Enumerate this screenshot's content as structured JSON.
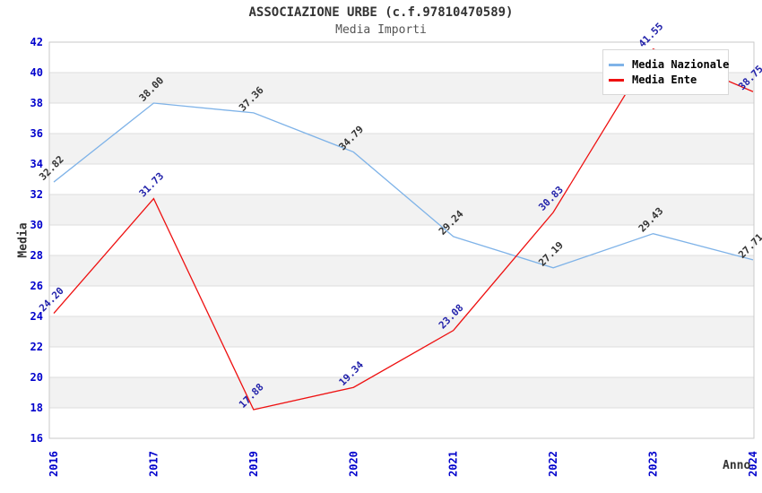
{
  "chart_data": {
    "type": "line",
    "title": "ASSOCIAZIONE URBE (c.f.97810470589)",
    "subtitle": "Media Importi",
    "xlabel": "Anno",
    "ylabel": "Media",
    "categories": [
      "2016",
      "2017",
      "2019",
      "2020",
      "2021",
      "2022",
      "2023",
      "2024"
    ],
    "series": [
      {
        "name": "Media Nazionale",
        "color": "#7fb3e8",
        "label_color": "#333333",
        "values": [
          32.82,
          38.0,
          37.36,
          34.79,
          29.24,
          27.19,
          29.43,
          27.71
        ]
      },
      {
        "name": "Media Ente",
        "color": "#ee1111",
        "label_color": "#2222aa",
        "values": [
          24.2,
          31.73,
          17.88,
          19.34,
          23.08,
          30.83,
          41.55,
          38.75
        ]
      }
    ],
    "ylim": [
      16,
      42
    ],
    "ytick_step": 2,
    "grid": "horizontal",
    "legend_position": "top-right",
    "axis_tick_color": "#0000cc",
    "band_color": "#f2f2f2",
    "gridline_color": "#dedede",
    "plot_border_color": "#c9c9c9"
  }
}
